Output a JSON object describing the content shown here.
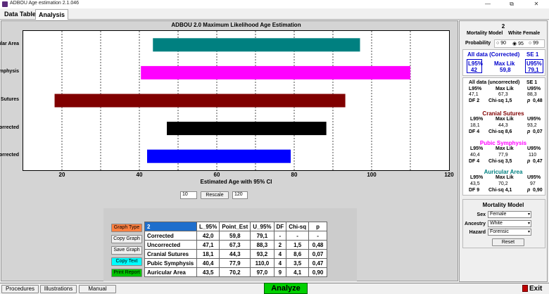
{
  "window": {
    "title": "ADBOU Age estimation 2.1.046",
    "minimize": "—",
    "restore": "⧉",
    "close": "✕"
  },
  "tabs": [
    {
      "label": "Data Table"
    },
    {
      "label": "Analysis"
    }
  ],
  "chart_data": {
    "type": "bar",
    "title": "ADBOU 2.0 Maximum Likelihood Age Estimation",
    "xlabel": "Estimated Age with 95% CI",
    "xlim": [
      10,
      120
    ],
    "xticks": [
      20,
      40,
      60,
      80,
      100,
      120
    ],
    "categories": [
      "Auricular Area",
      "Pubic Symphysis",
      "Cranial Sutures",
      "Uncorrected",
      "Corrected"
    ],
    "intervals": [
      [
        43.5,
        97.0
      ],
      [
        40.4,
        110.0
      ],
      [
        18.1,
        93.2
      ],
      [
        47.1,
        88.3
      ],
      [
        42.0,
        79.1
      ]
    ],
    "colors": [
      "#008080",
      "#ff00ff",
      "#800000",
      "#000000",
      "#0000ff"
    ],
    "grid": "vertical dashed"
  },
  "rescale": {
    "min": "10",
    "button": "Rescale",
    "max": "120"
  },
  "table_buttons": [
    {
      "label": "Graph Type",
      "color": "#ff8040"
    },
    {
      "label": "Copy Graph",
      "color": "#f0f0f0"
    },
    {
      "label": "Save Graph",
      "color": "#f0f0f0"
    },
    {
      "label": "Copy Text",
      "color": "#00ffff"
    },
    {
      "label": "Print Report",
      "color": "#00c000"
    }
  ],
  "results": {
    "header": [
      "2",
      "L_95%",
      "Point_Est",
      "U_95%",
      "DF",
      "Chi-sq",
      "p"
    ],
    "rows": [
      [
        "Corrected",
        "42,0",
        "59,8",
        "79,1",
        "-",
        "-",
        "-"
      ],
      [
        "Uncorrected",
        "47,1",
        "67,3",
        "88,3",
        "2",
        "1,5",
        "0,48"
      ],
      [
        "Cranial Sutures",
        "18,1",
        "44,3",
        "93,2",
        "4",
        "8,6",
        "0,07"
      ],
      [
        "Pubic Symphysis",
        "40,4",
        "77,9",
        "110,0",
        "4",
        "3,5",
        "0,47"
      ],
      [
        "Auricular Area",
        "43,5",
        "70,2",
        "97,0",
        "9",
        "4,1",
        "0,90"
      ]
    ]
  },
  "summary": {
    "id": "2",
    "model_label": "Mortality Model",
    "model_value": "White Female",
    "prob_label": "Probability",
    "prob_options": [
      "90",
      "95",
      "99"
    ],
    "corrected": {
      "title": "All data (Corrected)",
      "se": "SE 1",
      "l95_label": "L95%",
      "maxlik_label": "Max Lik",
      "u95_label": "U95%",
      "l95": "42",
      "maxlik": "59,8",
      "u95": "79,1"
    },
    "uncorrected": {
      "title": "All data (uncorrected)",
      "se": "SE 1",
      "l95_label": "L95%",
      "maxlik_label": "Max Lik",
      "u95_label": "U95%",
      "l95": "47,1",
      "maxlik": "67,3",
      "u95": "88,3",
      "df": "DF 2",
      "chi": "Chi-sq 1,5",
      "p_label": "p",
      "p": "0,48"
    },
    "cranial": {
      "title": "Cranial Sutures",
      "l95_label": "L95%",
      "maxlik_label": "Max Lik",
      "u95_label": "U95%",
      "l95": "18,1",
      "maxlik": "44,3",
      "u95": "93,2",
      "df": "DF 4",
      "chi": "Chi-sq 8,6",
      "p_label": "p",
      "p": "0,07"
    },
    "pubic": {
      "title": "Pubic Symphysis",
      "l95_label": "L95%",
      "maxlik_label": "Max Lik",
      "u95_label": "U95%",
      "l95": "40,4",
      "maxlik": "77,9",
      "u95": "110",
      "df": "DF 4",
      "chi": "Chi-sq 3,5",
      "p_label": "p",
      "p": "0,47"
    },
    "auricular": {
      "title": "Auricular Area",
      "l95_label": "L95%",
      "maxlik_label": "Max Lik",
      "u95_label": "U95%",
      "l95": "43,5",
      "maxlik": "70,2",
      "u95": "97",
      "df": "DF 9",
      "chi": "Chi-sq 4,1",
      "p_label": "p",
      "p": "0,90"
    }
  },
  "mortality": {
    "title": "Mortality Model",
    "sex_label": "Sex",
    "sex_value": "Female",
    "ancestry_label": "Ancestry",
    "ancestry_value": "White",
    "hazard_label": "Hazard",
    "hazard_value": "Forensic",
    "reset": "Reset"
  },
  "bottom": {
    "procedures": "Procedures",
    "illustrations": "Illustrations",
    "manual": "Manual",
    "analyze": "Analyze",
    "exit": "Exit"
  },
  "colors": {
    "corrected_title": "#0000cc",
    "cranial_title": "#800000",
    "pubic_title": "#ff00ff",
    "auricular_title": "#008080",
    "analyze_bg": "#00d000",
    "graph_header_bg": "#1e6ecc"
  }
}
